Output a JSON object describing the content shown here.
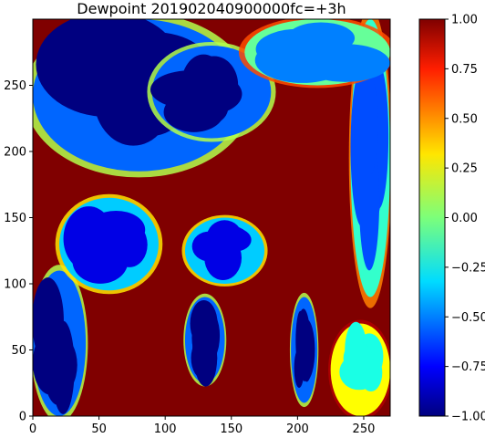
{
  "chart_data": {
    "type": "heatmap",
    "title": "Dewpoint 201902040900000fc=+3h",
    "xlabel": "",
    "ylabel": "",
    "xlim": [
      0,
      270
    ],
    "ylim": [
      0,
      300
    ],
    "x_ticks": [
      "0",
      "50",
      "100",
      "150",
      "200",
      "250"
    ],
    "y_ticks": [
      "0",
      "50",
      "100",
      "150",
      "200",
      "250"
    ],
    "colorbar": {
      "cmap": "jet",
      "range": [
        -1.0,
        1.0
      ],
      "ticks": [
        "1.00",
        "0.75",
        "0.50",
        "0.25",
        "0.00",
        "−0.25",
        "−0.50",
        "−0.75",
        "−1.00"
      ],
      "tick_values": [
        1.0,
        0.75,
        0.5,
        0.25,
        0.0,
        -0.25,
        -0.5,
        -0.75,
        -1.0
      ]
    },
    "dominant_value": 1.0,
    "low_value_regions": [
      {
        "name": "upper-left band",
        "x": [
          0,
          160
        ],
        "y": [
          185,
          300
        ],
        "value": -1.0
      },
      {
        "name": "upper-center blob",
        "x": [
          90,
          180
        ],
        "y": [
          210,
          280
        ],
        "value": -1.0
      },
      {
        "name": "right edge",
        "x": [
          240,
          270
        ],
        "y": [
          90,
          300
        ],
        "value": -0.6
      },
      {
        "name": "top right strip",
        "x": [
          160,
          270
        ],
        "y": [
          250,
          300
        ],
        "value": -0.5
      },
      {
        "name": "left lower",
        "x": [
          0,
          40
        ],
        "y": [
          0,
          110
        ],
        "value": -1.0
      },
      {
        "name": "center streak 1",
        "x": [
          115,
          175
        ],
        "y": [
          100,
          150
        ],
        "value": -0.8
      },
      {
        "name": "center streak 2",
        "x": [
          195,
          215
        ],
        "y": [
          10,
          90
        ],
        "value": -1.0
      },
      {
        "name": "lower center blob",
        "x": [
          115,
          145
        ],
        "y": [
          25,
          90
        ],
        "value": -1.0
      },
      {
        "name": "left mid",
        "x": [
          20,
          95
        ],
        "y": [
          95,
          165
        ],
        "value": -0.8
      },
      {
        "name": "right lower",
        "x": [
          225,
          270
        ],
        "y": [
          0,
          70
        ],
        "value": -0.2
      }
    ]
  }
}
